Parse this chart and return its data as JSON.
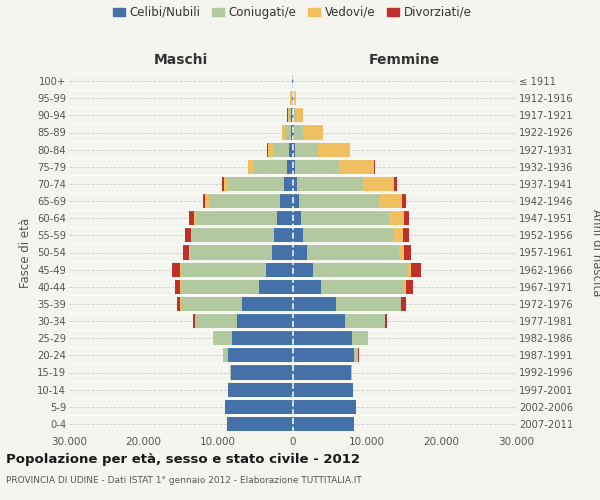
{
  "age_groups": [
    "0-4",
    "5-9",
    "10-14",
    "15-19",
    "20-24",
    "25-29",
    "30-34",
    "35-39",
    "40-44",
    "45-49",
    "50-54",
    "55-59",
    "60-64",
    "65-69",
    "70-74",
    "75-79",
    "80-84",
    "85-89",
    "90-94",
    "95-99",
    "100+"
  ],
  "birth_years": [
    "2007-2011",
    "2002-2006",
    "1997-2001",
    "1992-1996",
    "1987-1991",
    "1982-1986",
    "1977-1981",
    "1972-1976",
    "1967-1971",
    "1962-1966",
    "1957-1961",
    "1952-1956",
    "1947-1951",
    "1942-1946",
    "1937-1941",
    "1932-1936",
    "1927-1931",
    "1922-1926",
    "1917-1921",
    "1912-1916",
    "≤ 1911"
  ],
  "maschi": {
    "celibi": [
      8800,
      9000,
      8600,
      8300,
      8600,
      8100,
      7500,
      6800,
      4500,
      3500,
      2800,
      2500,
      2100,
      1700,
      1100,
      680,
      420,
      250,
      180,
      100,
      50
    ],
    "coniugati": [
      8,
      15,
      45,
      100,
      750,
      2500,
      5600,
      8200,
      10500,
      11500,
      11000,
      11000,
      10800,
      9500,
      7500,
      4500,
      2000,
      700,
      280,
      100,
      40
    ],
    "vedovi": [
      0,
      0,
      0,
      0,
      3,
      8,
      25,
      40,
      70,
      90,
      130,
      180,
      280,
      480,
      600,
      750,
      900,
      500,
      200,
      80,
      25
    ],
    "divorziati": [
      0,
      0,
      0,
      4,
      15,
      45,
      200,
      500,
      750,
      1050,
      750,
      750,
      650,
      400,
      200,
      90,
      45,
      25,
      15,
      8,
      4
    ]
  },
  "femmine": {
    "nubili": [
      8300,
      8500,
      8100,
      7900,
      8200,
      8000,
      7000,
      5900,
      3800,
      2700,
      1950,
      1450,
      1150,
      850,
      650,
      380,
      280,
      180,
      130,
      70,
      25
    ],
    "coniugate": [
      4,
      8,
      25,
      90,
      650,
      2100,
      5400,
      8600,
      11200,
      12800,
      12300,
      12200,
      11800,
      10800,
      8800,
      5800,
      3200,
      1200,
      380,
      90,
      25
    ],
    "vedove": [
      0,
      0,
      0,
      0,
      4,
      12,
      45,
      90,
      180,
      380,
      680,
      1200,
      2000,
      3100,
      4200,
      4800,
      4200,
      2700,
      900,
      280,
      90
    ],
    "divorziate": [
      0,
      0,
      0,
      4,
      22,
      75,
      260,
      600,
      950,
      1350,
      950,
      850,
      720,
      520,
      320,
      160,
      80,
      38,
      18,
      8,
      4
    ]
  },
  "colors": {
    "celibi": "#4472a8",
    "coniugati": "#b2c9a0",
    "vedovi": "#f0c060",
    "divorziati": "#c0302a"
  },
  "xlim": 30000,
  "xtick_labels": [
    "30.000",
    "20.000",
    "10.000",
    "0",
    "10.000",
    "20.000",
    "30.000"
  ],
  "title": "Popolazione per età, sesso e stato civile - 2012",
  "subtitle": "PROVINCIA DI UDINE - Dati ISTAT 1° gennaio 2012 - Elaborazione TUTTITALIA.IT",
  "ylabel_left": "Fasce di età",
  "ylabel_right": "Anni di nascita",
  "header_left": "Maschi",
  "header_right": "Femmine",
  "bg_color": "#f5f5f0",
  "bar_height": 0.82,
  "legend_labels": [
    "Celibi/Nubili",
    "Coniugati/e",
    "Vedovi/e",
    "Divorziati/e"
  ]
}
